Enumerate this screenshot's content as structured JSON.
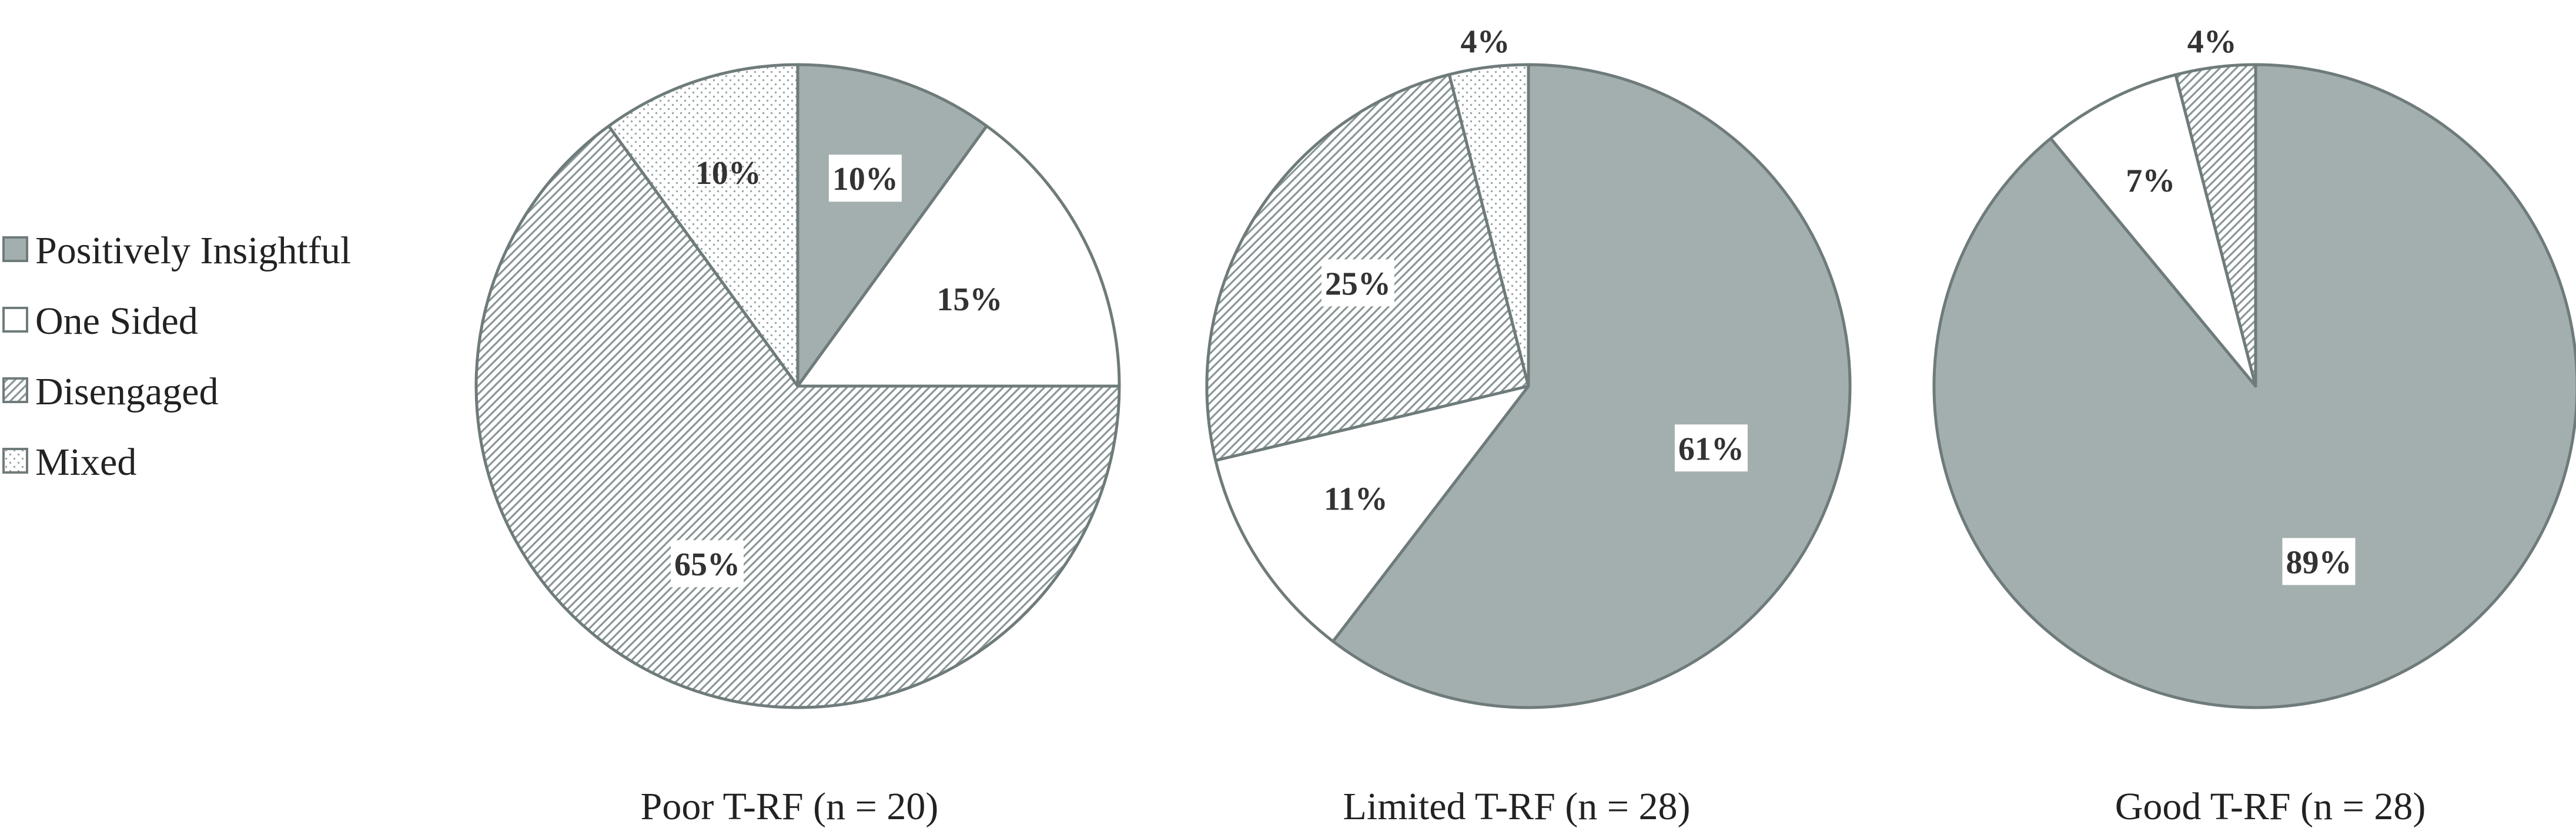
{
  "colors": {
    "outline": "#6f7b7b",
    "positively_insightful_fill": "#a3afae",
    "one_sided_fill": "#ffffff",
    "pattern_ink": "#8a9696",
    "label_box": "#ffffff",
    "text": "#333333"
  },
  "legend": {
    "placement": "left",
    "items": [
      {
        "label": "Positively Insightful",
        "pattern": "solid"
      },
      {
        "label": "One Sided",
        "pattern": "none"
      },
      {
        "label": "Disengaged",
        "pattern": "diagonal"
      },
      {
        "label": "Mixed",
        "pattern": "dots"
      }
    ]
  },
  "chart_data": [
    {
      "type": "pie",
      "caption": "Poor T-RF (n = 20)",
      "slices": [
        {
          "category": "Positively Insightful",
          "value": 10,
          "label": "10%"
        },
        {
          "category": "One Sided",
          "value": 15,
          "label": "15%"
        },
        {
          "category": "Disengaged",
          "value": 65,
          "label": "65%"
        },
        {
          "category": "Mixed",
          "value": 10,
          "label": "10%"
        }
      ]
    },
    {
      "type": "pie",
      "caption": "Limited T-RF (n = 28)",
      "slices": [
        {
          "category": "Positively Insightful",
          "value": 61,
          "label": "61%"
        },
        {
          "category": "One Sided",
          "value": 11,
          "label": "11%"
        },
        {
          "category": "Disengaged",
          "value": 25,
          "label": "25%"
        },
        {
          "category": "Mixed",
          "value": 4,
          "label": "4%"
        }
      ]
    },
    {
      "type": "pie",
      "caption": "Good T-RF (n = 28)",
      "slices": [
        {
          "category": "Positively Insightful",
          "value": 89,
          "label": "89%"
        },
        {
          "category": "One Sided",
          "value": 7,
          "label": "7%"
        },
        {
          "category": "Disengaged",
          "value": 4,
          "label": "4%"
        },
        {
          "category": "Mixed",
          "value": 0,
          "label": ""
        }
      ]
    }
  ]
}
